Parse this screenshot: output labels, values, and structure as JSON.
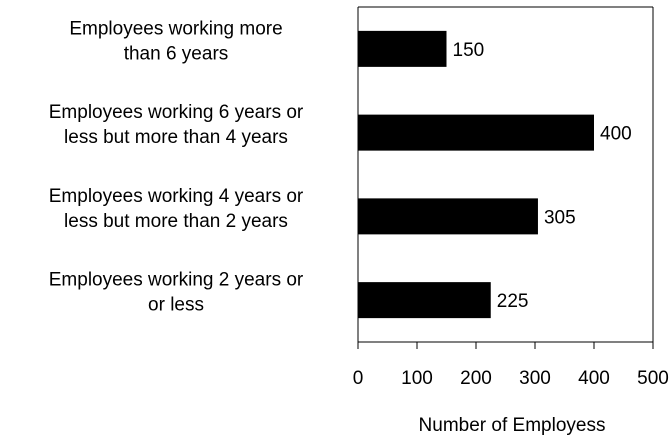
{
  "chart_data": {
    "type": "bar",
    "orientation": "horizontal",
    "categories": [
      [
        "Employees working more",
        "than 6 years"
      ],
      [
        "Employees working 6 years or",
        "less but more than 4 years"
      ],
      [
        "Employees working 4 years or",
        "less but more than 2 years"
      ],
      [
        "Employees working 2 years or",
        "or less"
      ]
    ],
    "values": [
      150,
      400,
      305,
      225
    ],
    "data_labels": [
      "150",
      "400",
      "305",
      "225"
    ],
    "title": "",
    "xlabel": "Number of Employess",
    "ylabel": "",
    "xlim": [
      0,
      500
    ],
    "xticks": [
      0,
      100,
      200,
      300,
      400,
      500
    ],
    "xtick_labels": [
      "0",
      "100",
      "200",
      "300",
      "400",
      "500"
    ],
    "grid": false,
    "legend": "none",
    "bar_color": "#000000",
    "axis_color": "#000000"
  }
}
